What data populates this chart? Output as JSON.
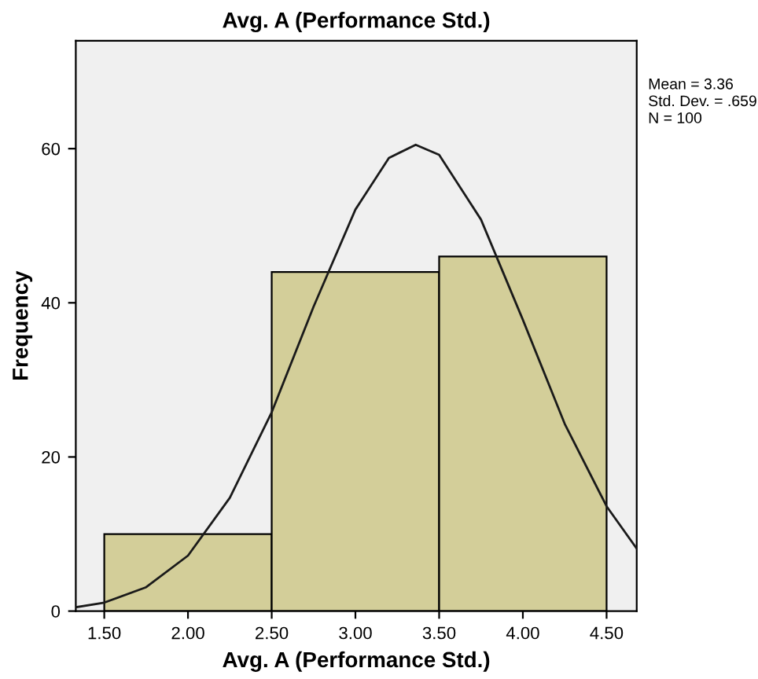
{
  "chart_data": {
    "type": "histogram",
    "title": "Avg. A (Performance Std.)",
    "xlabel": "Avg. A (Performance Std.)",
    "ylabel": "Frequency",
    "bins": [
      1.5,
      2.5,
      3.5,
      4.5
    ],
    "values": [
      10,
      44,
      46
    ],
    "color": "#d3ce99",
    "series": [
      {
        "type": "line",
        "color": "#1a1a1a",
        "x": [
          1.33,
          1.5,
          1.75,
          2.0,
          2.25,
          2.5,
          2.75,
          3.0,
          3.2,
          3.36,
          3.5,
          3.75,
          4.0,
          4.25,
          4.5,
          4.68
        ],
        "values": [
          0.5,
          1.1,
          3.1,
          7.2,
          14.7,
          25.8,
          39.5,
          52.1,
          58.8,
          60.5,
          59.2,
          50.8,
          37.8,
          24.3,
          13.6,
          8.1
        ]
      }
    ],
    "annotations": [
      "Mean = 3.36",
      "Std. Dev. = .659",
      "N = 100"
    ],
    "xlim": [
      1.33,
      4.68
    ],
    "ylim": [
      0,
      74
    ],
    "xticks": [
      {
        "value": 1.5,
        "label": "1.50"
      },
      {
        "value": 2.0,
        "label": "2.00"
      },
      {
        "value": 2.5,
        "label": "2.50"
      },
      {
        "value": 3.0,
        "label": "3.00"
      },
      {
        "value": 3.5,
        "label": "3.50"
      },
      {
        "value": 4.0,
        "label": "4.00"
      },
      {
        "value": 4.5,
        "label": "4.50"
      }
    ],
    "yticks": [
      0,
      20,
      40,
      60
    ],
    "grid": false,
    "legend": false
  }
}
